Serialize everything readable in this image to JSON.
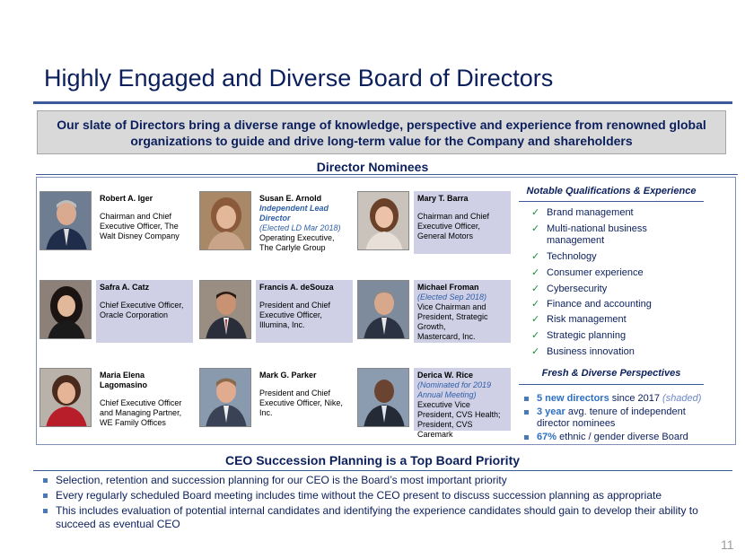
{
  "slide": {
    "title": "Highly Engaged and Diverse Board of Directors",
    "intro": "Our slate of Directors bring a diverse range of knowledge, perspective and experience from renowned global organizations to guide and drive long-term value for the Company and shareholders",
    "page_number": "11"
  },
  "nominees": {
    "heading": "Director Nominees",
    "directors": [
      {
        "name": "Robert A. Iger",
        "roles": [
          "Chairman and Chief Executive Officer, The Walt Disney Company"
        ]
      },
      {
        "name": "Susan E. Arnold",
        "note_bold": "Independent Lead Director",
        "note": "(Elected LD Mar 2018)",
        "roles": [
          "Operating Executive, The Carlyle Group"
        ]
      },
      {
        "name": "Mary T. Barra",
        "roles": [
          "Chairman and Chief Executive Officer, General Motors"
        ]
      },
      {
        "name": "Safra A. Catz",
        "roles": [
          "Chief Executive Officer, Oracle Corporation"
        ]
      },
      {
        "name": "Francis A. deSouza",
        "roles": [
          "President and Chief Executive Officer, Illumina, Inc."
        ]
      },
      {
        "name": "Michael Froman",
        "note": "(Elected Sep 2018)",
        "roles": [
          "Vice Chairman and President, Strategic Growth,",
          "Mastercard, Inc."
        ]
      },
      {
        "name": "Maria Elena Lagomasino",
        "roles": [
          "Chief Executive Officer and Managing Partner, WE Family Offices"
        ]
      },
      {
        "name": "Mark G. Parker",
        "roles": [
          "President and Chief Executive Officer, Nike, Inc."
        ]
      },
      {
        "name": "Derica W. Rice",
        "note": "(Nominated for 2019 Annual Meeting)",
        "roles": [
          "Executive Vice President, CVS Health; President, CVS Caremark"
        ]
      }
    ]
  },
  "qualifications": {
    "heading": "Notable Qualifications & Experience",
    "items": [
      "Brand management",
      "Multi-national business management",
      "Technology",
      "Consumer experience",
      "Cybersecurity",
      "Finance and accounting",
      "Risk management",
      "Strategic planning",
      "Business innovation"
    ]
  },
  "fresh": {
    "heading": "Fresh & Diverse Perspectives",
    "items": [
      {
        "highlight": "5 new directors",
        "text": " since 2017 ",
        "note": "(shaded)"
      },
      {
        "highlight": "3 year",
        "text": " avg. tenure of independent director nominees",
        "note": ""
      },
      {
        "highlight": "67%",
        "text": " ethnic / gender diverse Board",
        "note": ""
      }
    ]
  },
  "ceo": {
    "heading": "CEO Succession Planning is a Top Board Priority",
    "bullets": [
      "Selection, retention and succession planning for our CEO is the Board’s most important priority",
      "Every regularly scheduled Board meeting includes time without the CEO present to discuss succession planning as appropriate",
      "This includes evaluation of potential internal candidates and identifying the experience candidates should gain to develop their ability to succeed as eventual CEO"
    ]
  },
  "colors": {
    "navy": "#0b1f5c",
    "accent": "#2e6fc0",
    "shaded": "#cfcfe6",
    "check": "#1e8a3c"
  },
  "icons": {
    "check": "check-icon",
    "bullet": "square-bullet-icon"
  }
}
